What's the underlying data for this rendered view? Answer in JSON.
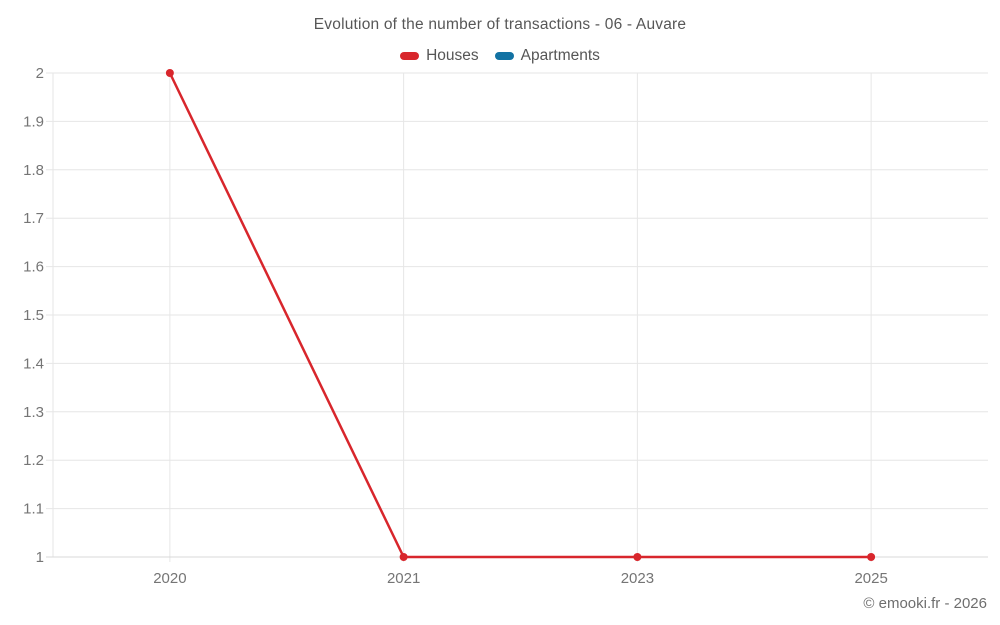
{
  "chart_data": {
    "type": "line",
    "title": "Evolution of the number of transactions - 06 - Auvare",
    "categories": [
      "2020",
      "2021",
      "2023",
      "2025"
    ],
    "series": [
      {
        "name": "Houses",
        "color": "#d8262c",
        "values": [
          2,
          1,
          1,
          1
        ]
      },
      {
        "name": "Apartments",
        "color": "#1272a3",
        "values": []
      }
    ],
    "ylim": [
      1,
      2
    ],
    "yticks": [
      1,
      1.1,
      1.2,
      1.3,
      1.4,
      1.5,
      1.6,
      1.7,
      1.8,
      1.9,
      2
    ],
    "ytick_labels": [
      "1",
      "1.1",
      "1.2",
      "1.3",
      "1.4",
      "1.5",
      "1.6",
      "1.7",
      "1.8",
      "1.9",
      "2"
    ],
    "xlabel": "",
    "ylabel": "",
    "grid": true,
    "legend_position": "top"
  },
  "footer": {
    "copyright": "© emooki.fr - 2026"
  }
}
